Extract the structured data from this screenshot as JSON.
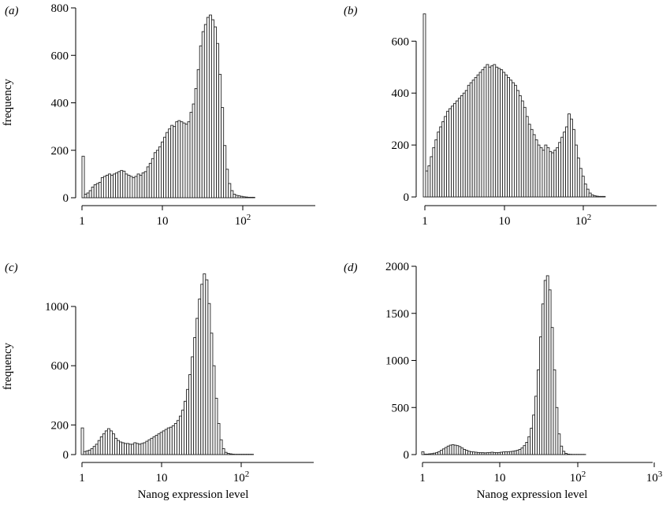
{
  "chart_data": [
    {
      "type": "bar",
      "panel": "(a)",
      "ylabel": "frequency",
      "xlabel": "",
      "x_scale": "log",
      "xlim": [
        1,
        700
      ],
      "ylim": [
        0,
        800
      ],
      "y_ticks": [
        0,
        200,
        400,
        600,
        800
      ],
      "x_ticks": [
        {
          "value": 1,
          "label": "1"
        },
        {
          "value": 10,
          "label": "10"
        },
        {
          "value": 100,
          "label": "10",
          "sup": "2"
        }
      ],
      "bin_start_exponent": 0,
      "bin_width_decades": 0.02927,
      "values": [
        175,
        15,
        20,
        30,
        45,
        55,
        60,
        65,
        85,
        90,
        95,
        100,
        95,
        100,
        105,
        110,
        115,
        112,
        100,
        95,
        90,
        85,
        90,
        100,
        95,
        105,
        110,
        130,
        145,
        165,
        190,
        200,
        215,
        235,
        255,
        275,
        290,
        305,
        300,
        320,
        325,
        320,
        315,
        310,
        320,
        360,
        395,
        460,
        540,
        640,
        700,
        730,
        760,
        770,
        750,
        720,
        650,
        520,
        380,
        220,
        120,
        60,
        30,
        15,
        10,
        8,
        6,
        4,
        3,
        2,
        2,
        2
      ]
    },
    {
      "type": "bar",
      "panel": "(b)",
      "ylabel": "",
      "xlabel": "",
      "x_scale": "log",
      "xlim": [
        1,
        1000
      ],
      "ylim": [
        0,
        710
      ],
      "y_ticks": [
        0,
        200,
        400,
        600
      ],
      "x_ticks": [
        {
          "value": 1,
          "label": "1"
        },
        {
          "value": 10,
          "label": "10"
        },
        {
          "value": 100,
          "label": "10",
          "sup": "2"
        }
      ],
      "bin_start_exponent": 0,
      "bin_width_decades": 0.03,
      "values": [
        705,
        100,
        120,
        155,
        190,
        220,
        250,
        270,
        290,
        310,
        330,
        340,
        350,
        360,
        370,
        380,
        390,
        400,
        410,
        430,
        440,
        450,
        460,
        470,
        480,
        490,
        500,
        510,
        500,
        505,
        510,
        500,
        495,
        490,
        480,
        470,
        460,
        450,
        440,
        430,
        410,
        390,
        370,
        345,
        310,
        280,
        260,
        240,
        220,
        200,
        190,
        180,
        200,
        190,
        175,
        170,
        180,
        190,
        210,
        230,
        250,
        270,
        320,
        300,
        260,
        200,
        150,
        110,
        80,
        50,
        30,
        15,
        8,
        5,
        3,
        2,
        2,
        2
      ]
    },
    {
      "type": "bar",
      "panel": "(c)",
      "ylabel": "frequency",
      "xlabel": "Nanog expression level",
      "x_scale": "log",
      "xlim": [
        1,
        700
      ],
      "ylim": [
        0,
        1250
      ],
      "y_ticks": [
        0,
        200,
        600,
        1000
      ],
      "x_ticks": [
        {
          "value": 1,
          "label": "1"
        },
        {
          "value": 10,
          "label": "10"
        },
        {
          "value": 100,
          "label": "10",
          "sup": "2"
        }
      ],
      "bin_start_exponent": 0,
      "bin_width_decades": 0.02927,
      "values": [
        180,
        20,
        25,
        30,
        40,
        55,
        70,
        95,
        120,
        140,
        160,
        175,
        160,
        140,
        110,
        95,
        85,
        80,
        75,
        75,
        70,
        70,
        80,
        75,
        70,
        75,
        80,
        90,
        100,
        110,
        120,
        130,
        140,
        150,
        160,
        170,
        180,
        185,
        195,
        210,
        230,
        260,
        300,
        360,
        440,
        540,
        660,
        790,
        920,
        1050,
        1150,
        1220,
        1180,
        1020,
        820,
        600,
        380,
        210,
        100,
        40,
        15,
        8,
        5,
        3,
        2,
        2,
        2,
        2,
        2,
        2,
        2,
        2
      ]
    },
    {
      "type": "bar",
      "panel": "(d)",
      "ylabel": "",
      "xlabel": "Nanog expression level",
      "x_scale": "log",
      "xlim": [
        1,
        1000
      ],
      "ylim": [
        0,
        2000
      ],
      "y_ticks": [
        0,
        500,
        1000,
        1500,
        2000
      ],
      "x_ticks": [
        {
          "value": 1,
          "label": "1"
        },
        {
          "value": 10,
          "label": "10"
        },
        {
          "value": 100,
          "label": "10",
          "sup": "2"
        },
        {
          "value": 1000,
          "label": "10",
          "sup": "3"
        }
      ],
      "bin_start_exponent": 0,
      "bin_width_decades": 0.03,
      "values": [
        30,
        5,
        5,
        8,
        10,
        15,
        20,
        30,
        45,
        60,
        75,
        90,
        100,
        105,
        100,
        95,
        85,
        70,
        55,
        45,
        35,
        30,
        28,
        25,
        22,
        20,
        20,
        18,
        20,
        22,
        25,
        22,
        20,
        22,
        25,
        28,
        30,
        30,
        32,
        35,
        40,
        45,
        55,
        70,
        95,
        130,
        190,
        280,
        420,
        620,
        900,
        1250,
        1600,
        1850,
        1900,
        1750,
        1350,
        900,
        500,
        220,
        90,
        35,
        12,
        5,
        3,
        2,
        2,
        2,
        2,
        2,
        2
      ]
    }
  ]
}
